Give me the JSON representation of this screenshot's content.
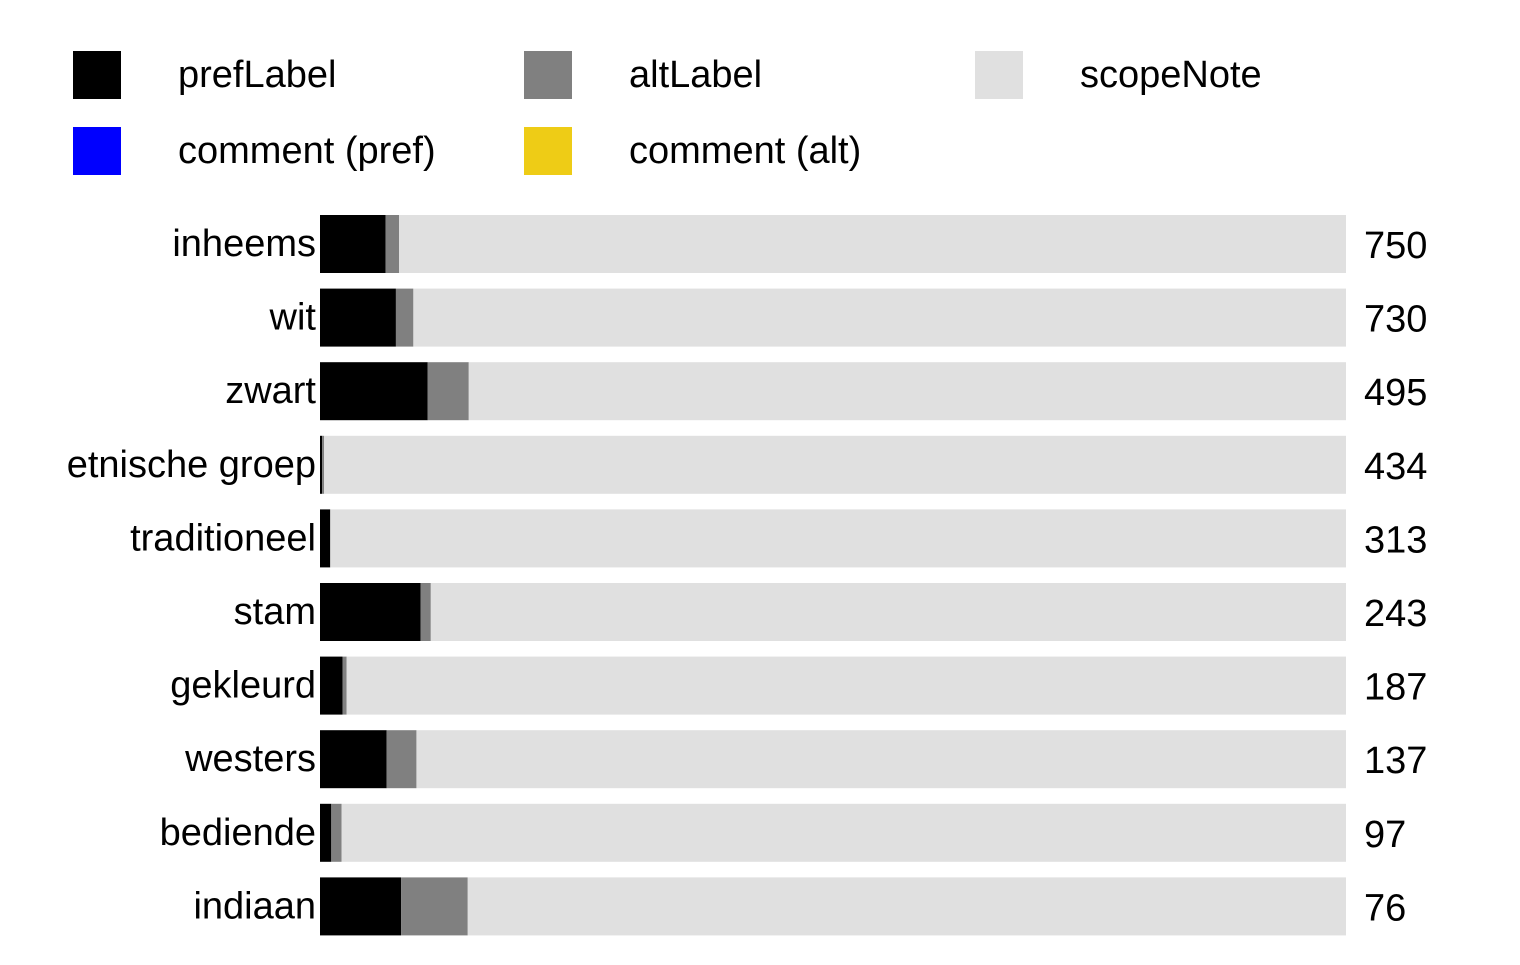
{
  "chart_data": {
    "type": "bar",
    "orientation": "horizontal",
    "stacked": true,
    "normalized": true,
    "legend": {
      "placement": "top",
      "entries": [
        {
          "key": "prefLabel",
          "label": "prefLabel",
          "color": "#000000"
        },
        {
          "key": "altLabel",
          "label": "altLabel",
          "color": "#808080"
        },
        {
          "key": "scopeNote",
          "label": "scopeNote",
          "color": "#e0e0e0"
        },
        {
          "key": "comment_pref",
          "label": "comment (pref)",
          "color": "#0000ff"
        },
        {
          "key": "comment_alt",
          "label": "comment (alt)",
          "color": "#eecc16"
        }
      ]
    },
    "categories": [
      "inheems",
      "wit",
      "zwart",
      "etnische groep",
      "traditioneel",
      "stam",
      "gekleurd",
      "westers",
      "bediende",
      "indiaan"
    ],
    "totals": [
      750,
      730,
      495,
      434,
      313,
      243,
      187,
      137,
      97,
      76
    ],
    "series": [
      {
        "name": "prefLabel",
        "color": "#000000",
        "values": [
          0.064,
          0.074,
          0.105,
          0.002,
          0.01,
          0.098,
          0.022,
          0.065,
          0.011,
          0.079
        ]
      },
      {
        "name": "altLabel",
        "color": "#808080",
        "values": [
          0.013,
          0.017,
          0.04,
          0.002,
          0.0,
          0.01,
          0.004,
          0.029,
          0.01,
          0.065
        ]
      },
      {
        "name": "scopeNote",
        "color": "#e0e0e0",
        "values": [
          0.923,
          0.909,
          0.855,
          0.996,
          0.99,
          0.892,
          0.974,
          0.906,
          0.979,
          0.856
        ]
      },
      {
        "name": "comment (pref)",
        "color": "#0000ff",
        "values": [
          0,
          0,
          0,
          0,
          0,
          0,
          0,
          0,
          0,
          0
        ]
      },
      {
        "name": "comment (alt)",
        "color": "#eecc16",
        "values": [
          0,
          0,
          0,
          0,
          0,
          0,
          0,
          0,
          0,
          0
        ]
      }
    ],
    "xlim": [
      0,
      1
    ],
    "title": "",
    "xlabel": "",
    "ylabel": "",
    "grid": false
  }
}
